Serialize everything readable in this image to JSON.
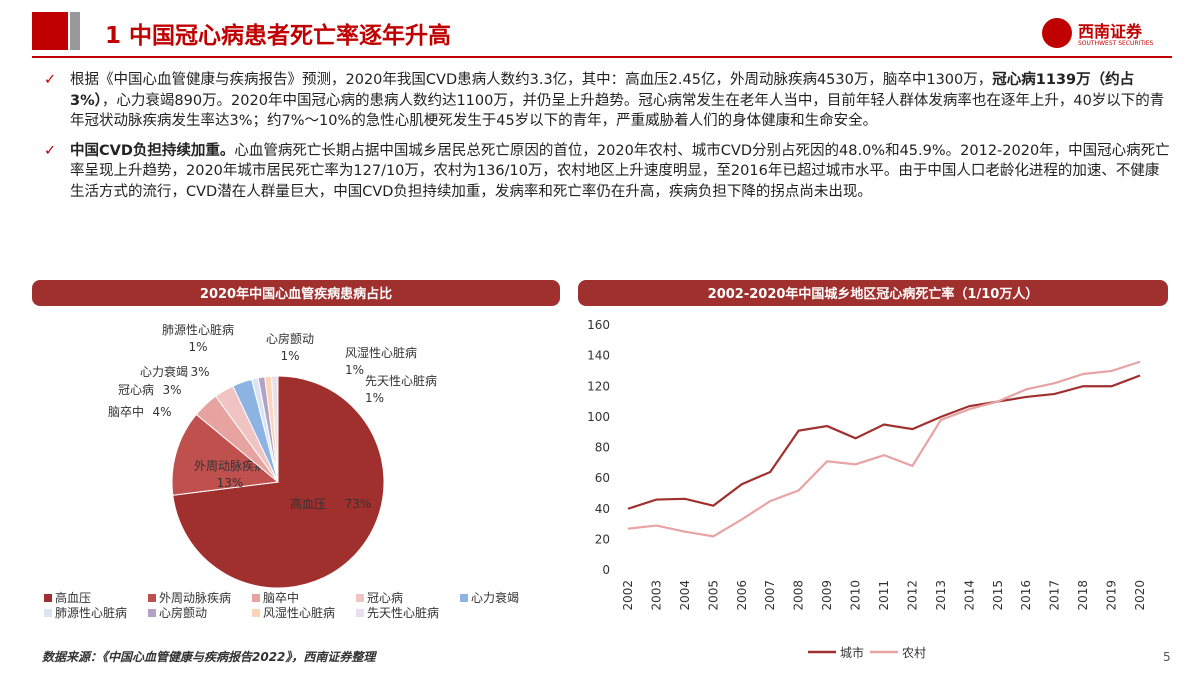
{
  "header": {
    "title": "1 中国冠心病患者死亡率逐年升高",
    "logo": "西南证券",
    "logo_sub": "SOUTHWEST SECURITIES"
  },
  "bullets": [
    [
      {
        "text": "根据《中国心血管健康与疾病报告》预测，2020年我国CVD患病人数约3.3亿，其中：高血压2.45亿，外周动脉疾病4530万，脑卒中1300万，",
        "bold": false
      },
      {
        "text": "冠心病1139万（约占3%）",
        "bold": true
      },
      {
        "text": "，心力衰竭890万。2020年中国冠心病的患病人数约达1100万，并仍呈上升趋势。冠心病常发生在老年人当中，目前年轻人群体发病率也在逐年上升，40岁以下的青年冠状动脉疾病发生率达3%；约7%～10%的急性心肌梗死发生于45岁以下的青年，严重威胁着人们的身体健康和生命安全。",
        "bold": false
      }
    ],
    [
      {
        "text": "中国CVD负担持续加重。",
        "bold": true
      },
      {
        "text": "心血管病死亡长期占据中国城乡居民总死亡原因的首位，2020年农村、城市CVD分别占死因的48.0%和45.9%。2012-2020年，中国冠心病死亡率呈现上升趋势，2020年城市居民死亡率为127/10万，农村为136/10万，农村地区上升速度明显，至2016年已超过城市水平。由于中国人口老龄化进程的加速、不健康生活方式的流行，CVD潜在人群量巨大，中国CVD负担持续加重，发病率和死亡率仍在升高，疾病负担下降的拐点尚未出现。",
        "bold": false
      }
    ]
  ],
  "chart_data": [
    {
      "type": "pie",
      "title": "2020年中国心血管疾病患病占比",
      "categories": [
        "高血压",
        "外周动脉疾病",
        "脑卒中",
        "冠心病",
        "心力衰竭",
        "肺源性心脏病",
        "心房颤动",
        "风湿性心脏病",
        "先天性心脏病"
      ],
      "values": [
        73,
        13,
        4,
        3,
        3,
        1,
        1,
        1,
        1
      ],
      "value_labels": [
        "73%",
        "13%",
        "4%",
        "3%",
        "3%",
        "1%",
        "1%",
        "1%",
        "1%"
      ],
      "colors": [
        "#a0302e",
        "#c0504d",
        "#e6a3a0",
        "#f0c4c2",
        "#8db3e2",
        "#dbe5f1",
        "#b3a2c7",
        "#fbd5b5",
        "#e8e0ec"
      ]
    },
    {
      "type": "line",
      "title": "2002-2020年中国城乡地区冠心病死亡率（1/10万人）",
      "categories": [
        "2002",
        "2003",
        "2004",
        "2005",
        "2006",
        "2007",
        "2008",
        "2009",
        "2010",
        "2011",
        "2012",
        "2013",
        "2014",
        "2015",
        "2016",
        "2017",
        "2018",
        "2019",
        "2020"
      ],
      "series": [
        {
          "name": "城市",
          "color": "#a0302e",
          "values": [
            40,
            46,
            46.5,
            42,
            56,
            64,
            91,
            94,
            86,
            95,
            92,
            100,
            107,
            110,
            113,
            115,
            120,
            120,
            127
          ]
        },
        {
          "name": "农村",
          "color": "#e8a4a4",
          "values": [
            27,
            29,
            25,
            22,
            33,
            45,
            52,
            71,
            69,
            75,
            68,
            98,
            105,
            110,
            118,
            122,
            128,
            130,
            136
          ]
        }
      ],
      "ylim": [
        0,
        160
      ],
      "yticks": [
        0,
        20,
        40,
        60,
        80,
        100,
        120,
        140,
        160
      ],
      "grid": false,
      "legend": "bottom"
    }
  ],
  "source": "数据来源：《中国心血管健康与疾病报告2022》，西南证券整理",
  "page_number": 5
}
